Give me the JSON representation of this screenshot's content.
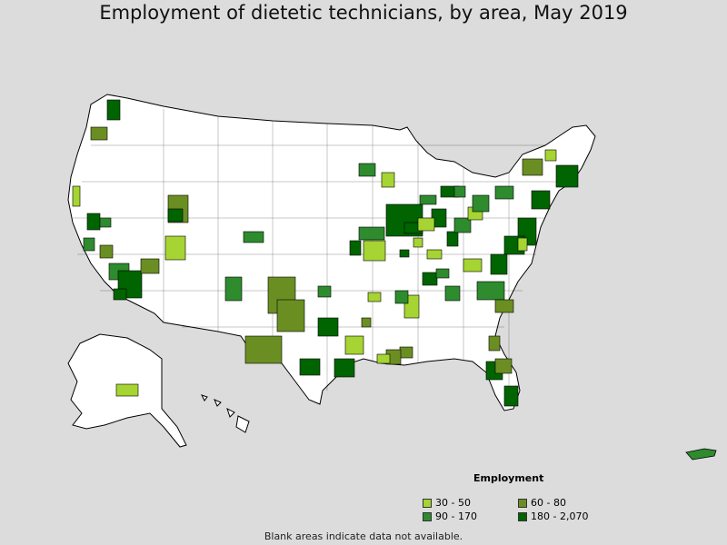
{
  "title": "Employment of dietetic technicians, by area, May 2019",
  "legend": {
    "title": "Employment",
    "items": [
      {
        "label": "30 - 50",
        "color": "#a6d432"
      },
      {
        "label": "60 - 80",
        "color": "#6b8e23"
      },
      {
        "label": "90 - 170",
        "color": "#2e8b2e"
      },
      {
        "label": "180 - 2,070",
        "color": "#006400"
      }
    ]
  },
  "footnote": "Blank areas indicate data not available.",
  "colors": {
    "background": "#dcdcdc",
    "no_data": "#ffffff",
    "border": "#000000"
  }
}
